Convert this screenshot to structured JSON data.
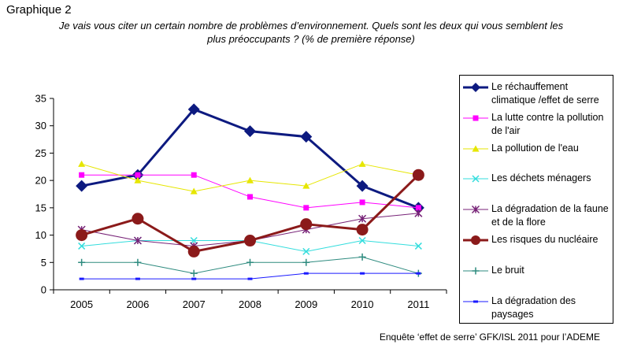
{
  "figure": {
    "label": "Graphique 2",
    "question_line1": "Je vais vous citer un certain nombre de problèmes d’environnement.  Quels sont les deux qui vous semblent les",
    "question_line2": "plus préoccupants ?  (% de première réponse)",
    "source": "Enquête ‘effet de serre’ GFK/ISL 2011 pour l’ADEME"
  },
  "chart_data": {
    "type": "line",
    "title": "",
    "xlabel": "",
    "ylabel": "",
    "x": [
      "2005",
      "2006",
      "2007",
      "2008",
      "2009",
      "2010",
      "2011"
    ],
    "ylim": [
      0,
      35
    ],
    "yticks": [
      0,
      5,
      10,
      15,
      20,
      25,
      30,
      35
    ],
    "grid": false,
    "legend_position": "right",
    "series": [
      {
        "name": "Le réchauffement climatique /effet de serre",
        "values": [
          19,
          21,
          33,
          29,
          28,
          19,
          15
        ],
        "color": "#0d1a80",
        "marker": "diamond",
        "width": 3
      },
      {
        "name": "La lutte contre la pollution de l'air",
        "values": [
          21,
          21,
          21,
          17,
          15,
          16,
          15
        ],
        "color": "#ff00ff",
        "marker": "square",
        "width": 1
      },
      {
        "name": "La pollution de l'eau",
        "values": [
          23,
          20,
          18,
          20,
          19,
          23,
          21
        ],
        "color": "#e6e600",
        "marker": "triangle",
        "width": 1
      },
      {
        "name": "Les déchets ménagers",
        "values": [
          8,
          9,
          9,
          9,
          7,
          9,
          8
        ],
        "color": "#33dddd",
        "marker": "x",
        "width": 1
      },
      {
        "name": "La dégradation de la faune et de la flore",
        "values": [
          11,
          9,
          8,
          9,
          11,
          13,
          14
        ],
        "color": "#772277",
        "marker": "star",
        "width": 1
      },
      {
        "name": "Les risques du nucléaire",
        "values": [
          10,
          13,
          7,
          9,
          12,
          11,
          21
        ],
        "color": "#8b1a1a",
        "marker": "circle",
        "width": 3
      },
      {
        "name": "Le bruit",
        "values": [
          5,
          5,
          3,
          5,
          5,
          6,
          3
        ],
        "color": "#2e8b7f",
        "marker": "plus",
        "width": 1
      },
      {
        "name": "La dégradation des paysages",
        "values": [
          2,
          2,
          2,
          2,
          3,
          3,
          3
        ],
        "color": "#1a1aff",
        "marker": "dash",
        "width": 1
      }
    ]
  }
}
